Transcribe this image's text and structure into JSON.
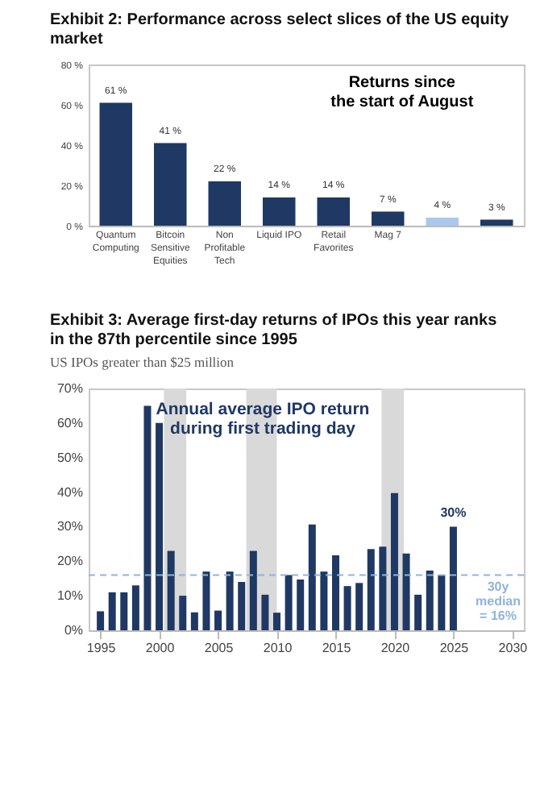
{
  "chart_data": [
    {
      "type": "bar",
      "title": "Exhibit 2: Performance across select slices of the US equity market",
      "categories": [
        "Quantum Computing",
        "Bitcoin Sensitive Equities",
        "Non Profitable Tech",
        "Liquid IPO",
        "Retail Favorites",
        "Mag 7",
        null,
        null
      ],
      "values": [
        61,
        41,
        22,
        14,
        14,
        7,
        4,
        3
      ],
      "colors": [
        "#1f3864",
        "#1f3864",
        "#1f3864",
        "#1f3864",
        "#1f3864",
        "#1f3864",
        "#a9c8ec",
        "#1f3864"
      ],
      "value_labels": [
        "61 %",
        "41 %",
        "22 %",
        "14 %",
        "14 %",
        "7 %",
        "4 %",
        "3 %"
      ],
      "ylim": [
        0,
        80
      ],
      "yticks": [
        {
          "value": 0,
          "label": "0 %"
        },
        {
          "value": 20,
          "label": "20 %"
        },
        {
          "value": 40,
          "label": "40 %"
        },
        {
          "value": 60,
          "label": "60 %"
        },
        {
          "value": 80,
          "label": "80 %"
        }
      ],
      "annotations": [
        "Returns since the start of August"
      ]
    },
    {
      "type": "bar",
      "title": "Exhibit 3: Average first-day returns of IPOs this year ranks in the 87th percentile since 1995",
      "subtitle": "US IPOs greater than $25 million",
      "x": [
        1995,
        1996,
        1997,
        1998,
        1999,
        2000,
        2001,
        2002,
        2003,
        2004,
        2005,
        2006,
        2007,
        2008,
        2009,
        2010,
        2011,
        2012,
        2013,
        2014,
        2015,
        2016,
        2017,
        2018,
        2019,
        2020,
        2021,
        2022,
        2023,
        2024,
        2025
      ],
      "values": [
        5.5,
        11,
        11,
        13,
        65,
        60,
        23,
        10,
        5.2,
        17,
        5.7,
        17,
        14,
        23,
        10.3,
        5.1,
        16,
        14.7,
        30.6,
        17,
        21.7,
        12.8,
        13.7,
        23.5,
        24.2,
        39.7,
        22.2,
        10.3,
        17.3,
        16,
        30
      ],
      "color": "#1f3864",
      "xlim": [
        1994,
        2031
      ],
      "xticks": [
        1995,
        2000,
        2005,
        2010,
        2015,
        2020,
        2025,
        2030
      ],
      "ylim": [
        0,
        70
      ],
      "yticks": [
        {
          "value": 0,
          "label": "0%"
        },
        {
          "value": 10,
          "label": "10%"
        },
        {
          "value": 20,
          "label": "20%"
        },
        {
          "value": 30,
          "label": "30%"
        },
        {
          "value": 40,
          "label": "40%"
        },
        {
          "value": 50,
          "label": "50%"
        },
        {
          "value": 60,
          "label": "60%"
        },
        {
          "value": 70,
          "label": "70%"
        }
      ],
      "bands": [
        {
          "axis": "x",
          "from": 2000.4,
          "to": 2002.3,
          "color": "#d9d9d9"
        },
        {
          "axis": "x",
          "from": 2007.4,
          "to": 2010,
          "color": "#d9d9d9"
        },
        {
          "axis": "x",
          "from": 2018.9,
          "to": 2020.8,
          "color": "#d9d9d9"
        }
      ],
      "ref_lines": [
        {
          "axis": "y",
          "value": 16,
          "label": "30y median = 16%",
          "color": "#8fb4dc",
          "line_style": "dashed"
        }
      ],
      "annotations": [
        "Annual average IPO return during first trading day",
        {
          "text": "30%",
          "x": 2025,
          "y": 30
        }
      ]
    }
  ]
}
